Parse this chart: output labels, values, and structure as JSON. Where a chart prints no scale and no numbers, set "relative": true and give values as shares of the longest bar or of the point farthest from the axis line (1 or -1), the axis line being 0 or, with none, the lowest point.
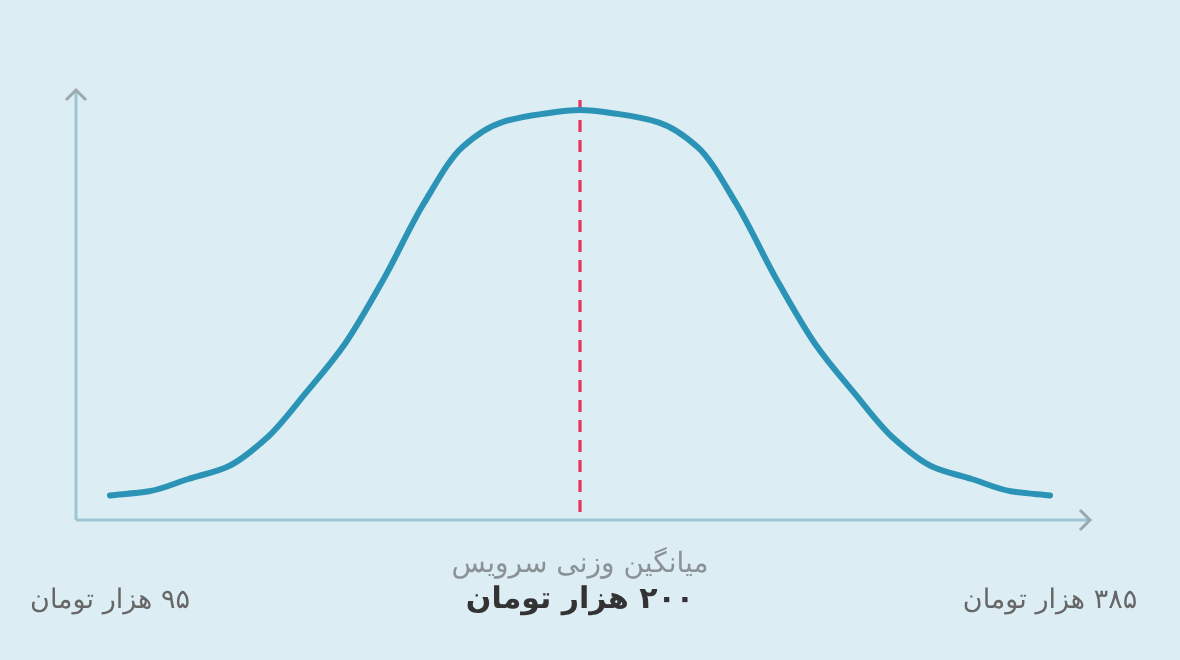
{
  "chart_data": {
    "type": "line",
    "relative": true,
    "categories": [
      "۹۵ هزار تومان",
      null,
      null,
      null,
      null,
      null,
      null,
      null,
      null,
      null,
      null,
      null,
      "۲۰۰ هزار تومان",
      null,
      null,
      null,
      null,
      null,
      null,
      null,
      null,
      null,
      null,
      null,
      "۳۸۵ هزار تومان"
    ],
    "series": [
      {
        "color": "#2b93b6",
        "values": [
          0.06,
          0.07,
          0.1,
          0.13,
          0.2,
          0.31,
          0.43,
          0.59,
          0.77,
          0.91,
          0.97,
          0.99,
          1.0,
          0.99,
          0.97,
          0.91,
          0.77,
          0.59,
          0.43,
          0.31,
          0.2,
          0.13,
          0.1,
          0.07,
          0.06
        ]
      }
    ],
    "ref_lines": [
      {
        "axis": "x",
        "value": "۲۰۰ هزار تومان",
        "label": "میانگین وزنی سرویس",
        "color": "#e8325a",
        "line_style": "dashed"
      }
    ],
    "grid": false,
    "marker": "none",
    "line_style": "solid"
  }
}
